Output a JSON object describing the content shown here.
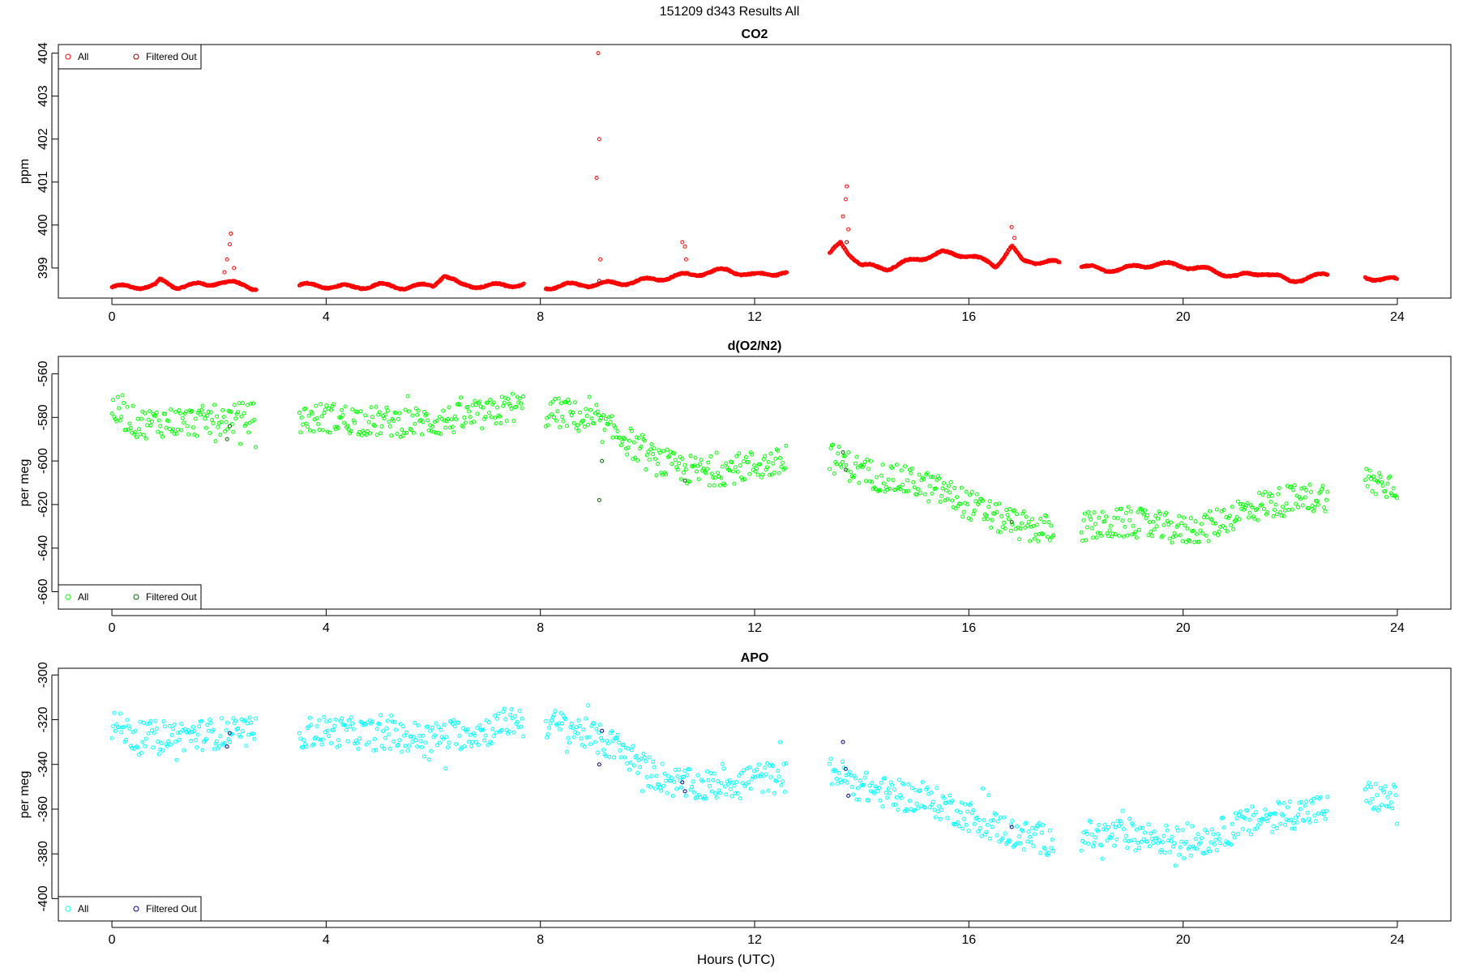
{
  "figure": {
    "title": "151209   d343   Results All",
    "xlabel": "Hours (UTC)"
  },
  "chart_data": [
    {
      "type": "scatter",
      "title": "CO2",
      "ylabel": "ppm",
      "xlim": [
        -1,
        25
      ],
      "ylim": [
        398.3,
        404.2
      ],
      "xticks": [
        "0",
        "4",
        "8",
        "12",
        "16",
        "20",
        "24"
      ],
      "yticks": [
        "399",
        "400",
        "401",
        "402",
        "403",
        "404"
      ],
      "legend": {
        "position": "top-left",
        "entries": [
          "All",
          "Filtered Out"
        ]
      },
      "colors": {
        "all": "#ff0000",
        "filtered": "#8b0000"
      },
      "segments": [
        {
          "x": [
            0.0,
            0.8,
            0.9,
            1.2,
            1.8,
            2.0,
            2.5,
            2.7
          ],
          "y": [
            398.55,
            398.58,
            398.7,
            398.57,
            398.62,
            398.68,
            398.6,
            398.52
          ]
        },
        {
          "x": [
            3.5,
            4.0,
            4.5,
            5.0,
            5.5,
            6.0,
            6.2,
            6.5,
            7.0,
            7.7
          ],
          "y": [
            398.6,
            398.58,
            398.55,
            398.6,
            398.55,
            398.6,
            398.85,
            398.6,
            398.58,
            398.62
          ]
        },
        {
          "x": [
            8.1,
            8.5,
            9.0,
            9.5,
            10.0,
            10.5,
            11.0,
            11.5,
            12.0,
            12.5,
            12.6
          ],
          "y": [
            398.55,
            398.6,
            398.62,
            398.65,
            398.72,
            398.8,
            398.88,
            398.95,
            398.82,
            398.9,
            398.88
          ]
        },
        {
          "x": [
            13.4,
            13.6,
            13.8,
            14.0,
            14.5,
            15.0,
            15.5,
            16.0,
            16.5,
            16.8,
            17.0,
            17.5,
            17.7
          ],
          "y": [
            399.3,
            399.6,
            399.3,
            399.05,
            399.0,
            399.2,
            399.35,
            399.3,
            399.05,
            399.5,
            399.15,
            399.15,
            399.1
          ]
        },
        {
          "x": [
            18.1,
            18.5,
            19.0,
            19.5,
            20.0,
            20.5,
            21.0,
            21.5,
            22.0,
            22.7
          ],
          "y": [
            399.05,
            398.95,
            399.0,
            399.1,
            399.05,
            398.95,
            398.8,
            398.9,
            398.7,
            398.85
          ]
        },
        {
          "x": [
            23.4,
            23.7,
            24.0
          ],
          "y": [
            398.78,
            398.75,
            398.72
          ]
        }
      ],
      "spikes": [
        {
          "x": 2.1,
          "y": 398.9
        },
        {
          "x": 2.15,
          "y": 399.2
        },
        {
          "x": 2.2,
          "y": 399.55
        },
        {
          "x": 2.22,
          "y": 399.8
        },
        {
          "x": 2.28,
          "y": 399.0
        },
        {
          "x": 9.05,
          "y": 401.1
        },
        {
          "x": 9.1,
          "y": 402.0
        },
        {
          "x": 9.08,
          "y": 404.0
        },
        {
          "x": 9.12,
          "y": 399.2
        },
        {
          "x": 10.65,
          "y": 399.6
        },
        {
          "x": 10.7,
          "y": 399.5
        },
        {
          "x": 10.72,
          "y": 399.2
        },
        {
          "x": 13.65,
          "y": 400.2
        },
        {
          "x": 13.7,
          "y": 400.6
        },
        {
          "x": 13.72,
          "y": 400.9
        },
        {
          "x": 13.75,
          "y": 399.9
        },
        {
          "x": 16.8,
          "y": 399.95
        },
        {
          "x": 16.85,
          "y": 399.7
        }
      ],
      "filtered": [
        {
          "x": 13.72,
          "y": 399.6
        },
        {
          "x": 9.1,
          "y": 398.7
        }
      ]
    },
    {
      "type": "scatter",
      "title": "d(O2/N2)",
      "ylabel": "per meg",
      "xlim": [
        -1,
        25
      ],
      "ylim": [
        -668,
        -552
      ],
      "xticks": [
        "0",
        "4",
        "8",
        "12",
        "16",
        "20",
        "24"
      ],
      "yticks": [
        "-660",
        "-640",
        "-620",
        "-600",
        "-580",
        "-560"
      ],
      "legend": {
        "position": "bottom-left",
        "entries": [
          "All",
          "Filtered Out"
        ]
      },
      "colors": {
        "all": "#00ff00",
        "filtered": "#006400"
      },
      "segments": [
        {
          "x": [
            0.0,
            0.5,
            1.0,
            1.5,
            2.0,
            2.5,
            2.7
          ],
          "y": [
            -576,
            -583,
            -582,
            -582,
            -581,
            -580,
            -580
          ]
        },
        {
          "x": [
            3.5,
            4.0,
            5.0,
            6.0,
            7.0,
            7.5,
            7.7
          ],
          "y": [
            -581,
            -580,
            -582,
            -582,
            -579,
            -575,
            -576
          ]
        },
        {
          "x": [
            8.1,
            8.5,
            9.0,
            9.5,
            10.0,
            10.5,
            11.0,
            11.5,
            12.0,
            12.6
          ],
          "y": [
            -578,
            -578,
            -583,
            -588,
            -598,
            -603,
            -605,
            -604,
            -602,
            -601
          ]
        },
        {
          "x": [
            13.4,
            14.0,
            14.5,
            15.0,
            15.5,
            16.0,
            16.5,
            17.0,
            17.6
          ],
          "y": [
            -598,
            -605,
            -608,
            -610,
            -614,
            -620,
            -626,
            -630,
            -632
          ]
        },
        {
          "x": [
            18.1,
            18.5,
            19.0,
            19.5,
            20.0,
            20.5,
            21.0,
            21.5,
            22.0,
            22.7
          ],
          "y": [
            -630,
            -630,
            -628,
            -630,
            -632,
            -630,
            -624,
            -620,
            -618,
            -616
          ]
        },
        {
          "x": [
            23.4,
            23.7,
            24.0
          ],
          "y": [
            -609,
            -610,
            -611
          ]
        }
      ],
      "noise": 7,
      "filtered": [
        {
          "x": 2.15,
          "y": -590
        },
        {
          "x": 2.2,
          "y": -584
        },
        {
          "x": 9.1,
          "y": -618
        },
        {
          "x": 9.15,
          "y": -600
        },
        {
          "x": 10.7,
          "y": -609
        },
        {
          "x": 13.65,
          "y": -596
        },
        {
          "x": 13.7,
          "y": -604
        },
        {
          "x": 16.8,
          "y": -628
        }
      ]
    },
    {
      "type": "scatter",
      "title": "APO",
      "ylabel": "per meg",
      "xlim": [
        -1,
        25
      ],
      "ylim": [
        -410,
        -297
      ],
      "xticks": [
        "0",
        "4",
        "8",
        "12",
        "16",
        "20",
        "24"
      ],
      "yticks": [
        "-400",
        "-380",
        "-360",
        "-340",
        "-320",
        "-300"
      ],
      "legend": {
        "position": "bottom-left",
        "entries": [
          "All",
          "Filtered Out"
        ]
      },
      "colors": {
        "all": "#00ffff",
        "filtered": "#00008b"
      },
      "segments": [
        {
          "x": [
            0.0,
            0.5,
            1.0,
            1.5,
            2.0,
            2.5,
            2.7
          ],
          "y": [
            -322,
            -328,
            -327,
            -327,
            -326,
            -326,
            -326
          ]
        },
        {
          "x": [
            3.5,
            4.0,
            5.0,
            6.0,
            7.0,
            7.5,
            7.7
          ],
          "y": [
            -326,
            -325,
            -327,
            -328,
            -325,
            -320,
            -321
          ]
        },
        {
          "x": [
            8.1,
            8.5,
            9.0,
            9.5,
            10.0,
            10.5,
            11.0,
            11.5,
            12.0,
            12.6
          ],
          "y": [
            -322,
            -323,
            -328,
            -333,
            -343,
            -348,
            -350,
            -348,
            -346,
            -346
          ]
        },
        {
          "x": [
            13.4,
            14.0,
            14.5,
            15.0,
            15.5,
            16.0,
            16.5,
            17.0,
            17.6
          ],
          "y": [
            -342,
            -350,
            -353,
            -355,
            -358,
            -363,
            -368,
            -372,
            -374
          ]
        },
        {
          "x": [
            18.1,
            18.5,
            19.0,
            19.5,
            20.0,
            20.5,
            21.0,
            21.5,
            22.0,
            22.7
          ],
          "y": [
            -372,
            -372,
            -371,
            -373,
            -375,
            -373,
            -368,
            -364,
            -362,
            -360
          ]
        },
        {
          "x": [
            23.4,
            23.7,
            24.0
          ],
          "y": [
            -354,
            -355,
            -356
          ]
        }
      ],
      "noise": 7,
      "filtered": [
        {
          "x": 2.15,
          "y": -332
        },
        {
          "x": 2.2,
          "y": -326
        },
        {
          "x": 9.1,
          "y": -340
        },
        {
          "x": 9.15,
          "y": -325
        },
        {
          "x": 10.65,
          "y": -348
        },
        {
          "x": 10.7,
          "y": -352
        },
        {
          "x": 13.65,
          "y": -330
        },
        {
          "x": 13.7,
          "y": -342
        },
        {
          "x": 13.75,
          "y": -354
        },
        {
          "x": 16.8,
          "y": -368
        }
      ]
    }
  ]
}
